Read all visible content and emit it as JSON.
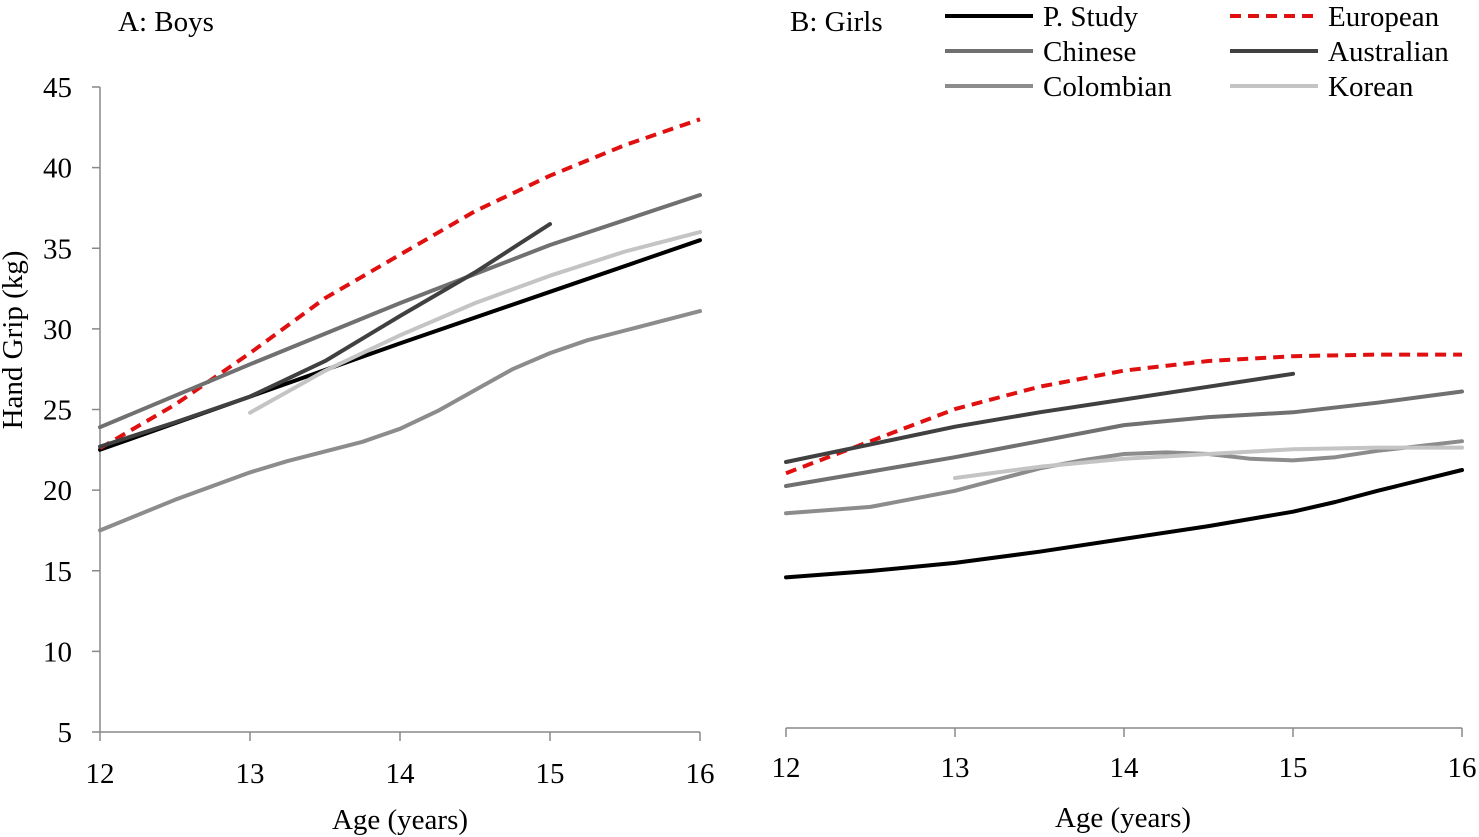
{
  "chart_data": [
    {
      "type": "line",
      "title": "A: Boys",
      "xlabel": "Age (years)",
      "ylabel": "Hand Grip (kg)",
      "xlim": [
        12,
        16
      ],
      "ylim": [
        5,
        45
      ],
      "xticks": [
        "12",
        "13",
        "14",
        "15",
        "16"
      ],
      "yticks": [
        "5",
        "10",
        "15",
        "20",
        "25",
        "30",
        "35",
        "40",
        "45"
      ],
      "grid": false,
      "series": [
        {
          "name": "P. Study",
          "x": [
            12,
            13,
            14,
            15,
            16
          ],
          "values": [
            22.5,
            25.8,
            29.1,
            32.3,
            35.5
          ]
        },
        {
          "name": "European",
          "x": [
            12,
            12.5,
            13,
            13.5,
            14,
            14.5,
            15,
            15.5,
            16
          ],
          "values": [
            22.6,
            25.3,
            28.5,
            31.9,
            34.6,
            37.3,
            39.5,
            41.4,
            43.0
          ]
        },
        {
          "name": "Chinese",
          "x": [
            12,
            13,
            14,
            15,
            16
          ],
          "values": [
            23.9,
            27.8,
            31.6,
            35.2,
            38.3
          ]
        },
        {
          "name": "Australian",
          "x": [
            12,
            12.5,
            13,
            13.5,
            14,
            14.5,
            15
          ],
          "values": [
            22.7,
            24.2,
            25.8,
            28.0,
            30.8,
            33.5,
            36.5
          ]
        },
        {
          "name": "Colombian",
          "x": [
            12,
            12.5,
            13,
            13.25,
            13.5,
            13.75,
            14,
            14.25,
            14.5,
            14.75,
            15,
            15.25,
            15.5,
            16
          ],
          "values": [
            17.5,
            19.4,
            21.1,
            21.8,
            22.4,
            23.0,
            23.8,
            24.9,
            26.2,
            27.5,
            28.5,
            29.3,
            29.9,
            31.1
          ]
        },
        {
          "name": "Korean",
          "x": [
            13,
            13.5,
            14,
            14.5,
            15,
            15.5,
            16
          ],
          "values": [
            24.8,
            27.4,
            29.6,
            31.6,
            33.3,
            34.8,
            36.0
          ]
        }
      ]
    },
    {
      "type": "line",
      "title": "B: Girls",
      "xlabel": "Age (years)",
      "ylabel": "",
      "xlim": [
        12,
        16
      ],
      "ylim": [
        5,
        45
      ],
      "xticks": [
        "12",
        "13",
        "14",
        "15",
        "16"
      ],
      "grid": false,
      "series": [
        {
          "name": "P. Study",
          "x": [
            12,
            12.5,
            13,
            13.5,
            14,
            14.5,
            15,
            15.25,
            15.5,
            16
          ],
          "values": [
            14.4,
            14.8,
            15.3,
            16.0,
            16.8,
            17.6,
            18.5,
            19.1,
            19.8,
            21.1
          ]
        },
        {
          "name": "European",
          "x": [
            12,
            12.5,
            13,
            13.5,
            14,
            14.5,
            15,
            15.5,
            16
          ],
          "values": [
            20.9,
            22.9,
            24.9,
            26.3,
            27.3,
            27.9,
            28.2,
            28.3,
            28.3
          ]
        },
        {
          "name": "Chinese",
          "x": [
            12,
            12.5,
            13,
            13.5,
            14,
            14.5,
            15,
            15.5,
            16
          ],
          "values": [
            20.1,
            21.0,
            21.9,
            22.9,
            23.9,
            24.4,
            24.7,
            25.3,
            26.0
          ]
        },
        {
          "name": "Australian",
          "x": [
            12,
            12.5,
            13,
            13.5,
            14,
            14.5,
            15
          ],
          "values": [
            21.6,
            22.7,
            23.8,
            24.7,
            25.5,
            26.3,
            27.1
          ]
        },
        {
          "name": "Colombian",
          "x": [
            12,
            12.5,
            13,
            13.25,
            13.5,
            13.75,
            14,
            14.25,
            14.5,
            14.75,
            15,
            15.25,
            15.5,
            16
          ],
          "values": [
            18.4,
            18.8,
            19.8,
            20.5,
            21.2,
            21.7,
            22.1,
            22.2,
            22.1,
            21.8,
            21.7,
            21.9,
            22.3,
            22.9
          ]
        },
        {
          "name": "Korean",
          "x": [
            13,
            13.5,
            14,
            14.5,
            15,
            15.5,
            16
          ],
          "values": [
            20.6,
            21.3,
            21.8,
            22.1,
            22.4,
            22.5,
            22.5
          ]
        }
      ]
    }
  ],
  "legend": {
    "placement": "top-right",
    "items": [
      {
        "name": "P. Study",
        "color": "#000000",
        "dash": "solid"
      },
      {
        "name": "European",
        "color": "#e01010",
        "dash": "dashed"
      },
      {
        "name": "Chinese",
        "color": "#707070",
        "dash": "solid"
      },
      {
        "name": "Australian",
        "color": "#404040",
        "dash": "solid"
      },
      {
        "name": "Colombian",
        "color": "#8c8c8c",
        "dash": "solid"
      },
      {
        "name": "Korean",
        "color": "#c4c4c4",
        "dash": "solid"
      }
    ]
  }
}
